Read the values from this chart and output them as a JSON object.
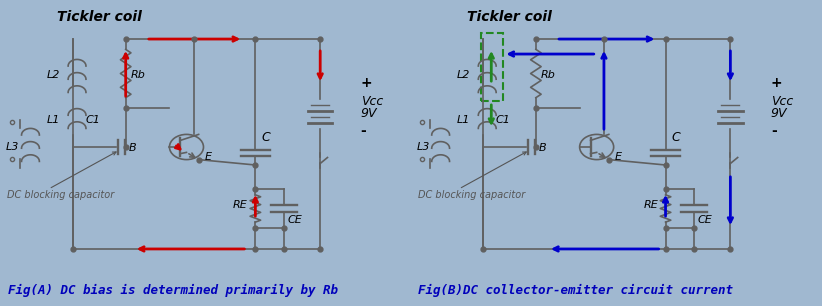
{
  "fig_width": 8.22,
  "fig_height": 3.06,
  "dpi": 100,
  "bg_color": "#a0b8d0",
  "left_panel": {
    "bg_color": "#d4e8b0",
    "border_color": "#5599cc",
    "title": "Tickler coil",
    "caption": "Fig(A) DC bias is determined primarily by Rb",
    "caption_color": "#0000bb",
    "caption_fontsize": 9.0,
    "title_fontsize": 10,
    "title_style": "italic"
  },
  "right_panel": {
    "bg_color": "#f5e0e0",
    "border_color": "#5599cc",
    "title": "Tickler coil",
    "caption": "Fig(B)DC collector-emitter circuit current",
    "caption_color": "#0000bb",
    "caption_fontsize": 9.0,
    "title_fontsize": 10,
    "title_style": "italic"
  },
  "labels": {
    "L1": "L1",
    "L2": "L2",
    "L3": "L3",
    "C1": "C1",
    "C": "C",
    "Rb": "Rb",
    "RE": "RE",
    "CE": "CE",
    "B": "B",
    "E": "E",
    "Vcc": "Vcc",
    "9V": "9V",
    "plus": "+",
    "minus": "-",
    "dc_blocking": "DC blocking capacitor"
  },
  "arrow_color_left": "#cc0000",
  "arrow_color_right": "#0000cc",
  "circuit_color": "#606060",
  "green_dashed_color": "#228822"
}
